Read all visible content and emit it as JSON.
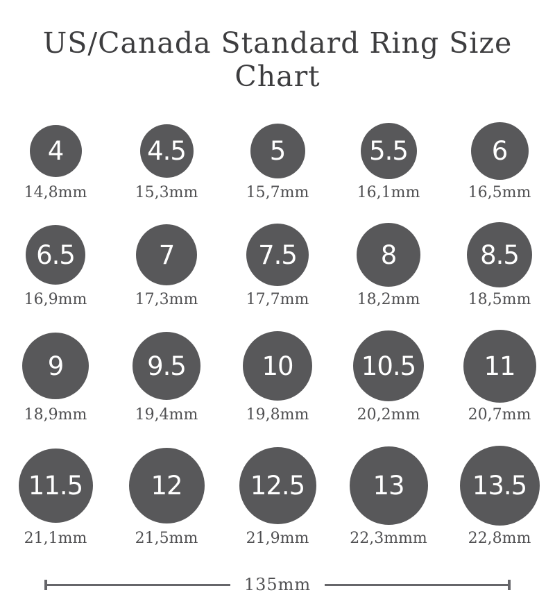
{
  "title": "US/Canada Standard Ring Size Chart",
  "colors": {
    "circle": "#58585a",
    "title": "#3d3d3f",
    "label_text": "#4f4f51",
    "size_text": "#ffffff",
    "ruler": "#66666a"
  },
  "rows": [
    {
      "items": [
        {
          "size": "4",
          "mm": 14.8,
          "diameter_label": "14,8mm"
        },
        {
          "size": "4.5",
          "mm": 15.3,
          "diameter_label": "15,3mm"
        },
        {
          "size": "5",
          "mm": 15.7,
          "diameter_label": "15,7mm"
        },
        {
          "size": "5.5",
          "mm": 16.1,
          "diameter_label": "16,1mm"
        },
        {
          "size": "6",
          "mm": 16.5,
          "diameter_label": "16,5mm"
        }
      ]
    },
    {
      "items": [
        {
          "size": "6.5",
          "mm": 16.9,
          "diameter_label": "16,9mm"
        },
        {
          "size": "7",
          "mm": 17.3,
          "diameter_label": "17,3mm"
        },
        {
          "size": "7.5",
          "mm": 17.7,
          "diameter_label": "17,7mm"
        },
        {
          "size": "8",
          "mm": 18.2,
          "diameter_label": "18,2mm"
        },
        {
          "size": "8.5",
          "mm": 18.5,
          "diameter_label": "18,5mm"
        }
      ]
    },
    {
      "items": [
        {
          "size": "9",
          "mm": 18.9,
          "diameter_label": "18,9mm"
        },
        {
          "size": "9.5",
          "mm": 19.4,
          "diameter_label": "19,4mm"
        },
        {
          "size": "10",
          "mm": 19.8,
          "diameter_label": "19,8mm"
        },
        {
          "size": "10.5",
          "mm": 20.2,
          "diameter_label": "20,2mm"
        },
        {
          "size": "11",
          "mm": 20.7,
          "diameter_label": "20,7mm"
        }
      ]
    },
    {
      "items": [
        {
          "size": "11.5",
          "mm": 21.1,
          "diameter_label": "21,1mm"
        },
        {
          "size": "12",
          "mm": 21.5,
          "diameter_label": "21,5mm"
        },
        {
          "size": "12.5",
          "mm": 21.9,
          "diameter_label": "21,9mm"
        },
        {
          "size": "13",
          "mm": 22.3,
          "diameter_label": "22,3mmm"
        },
        {
          "size": "13.5",
          "mm": 22.8,
          "diameter_label": "22,8mm"
        }
      ]
    }
  ],
  "ruler": {
    "label": "135mm"
  }
}
